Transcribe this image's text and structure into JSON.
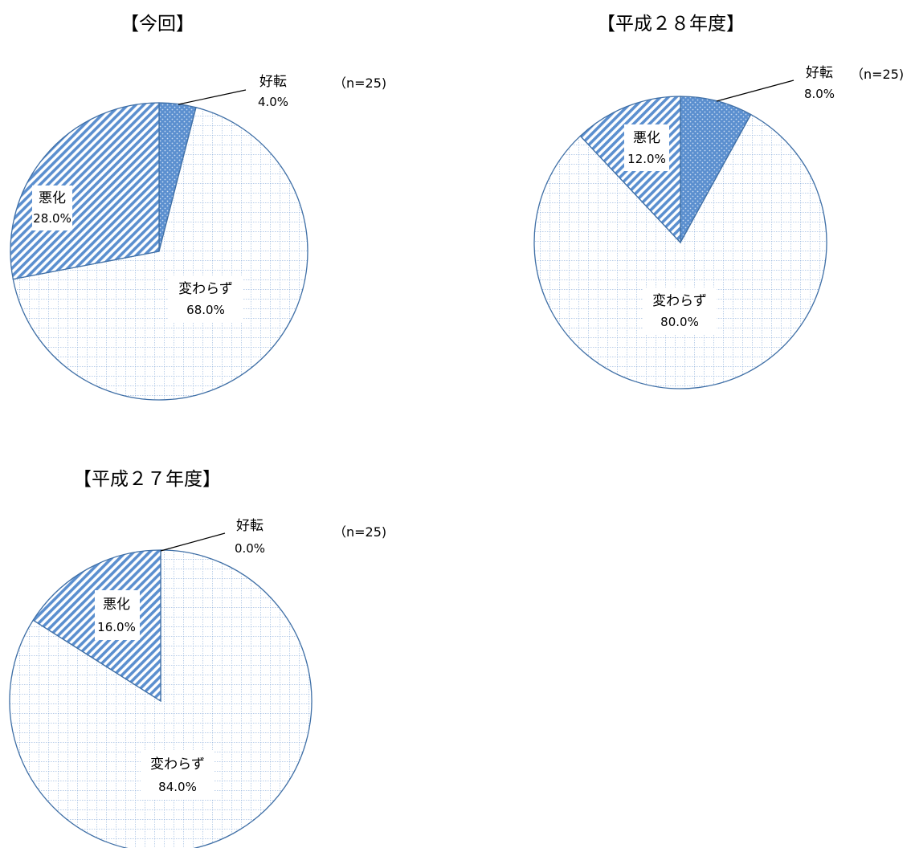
{
  "chart_data": [
    {
      "type": "pie",
      "title": "【今回】",
      "n_label": "（n=25)",
      "slices": [
        {
          "label": "好転",
          "value": 4.0,
          "value_text": "4.0%"
        },
        {
          "label": "変わらず",
          "value": 68.0,
          "value_text": "68.0%"
        },
        {
          "label": "悪化",
          "value": 28.0,
          "value_text": "28.0%"
        }
      ]
    },
    {
      "type": "pie",
      "title": "【平成２８年度】",
      "n_label": "（n=25)",
      "slices": [
        {
          "label": "好転",
          "value": 8.0,
          "value_text": "8.0%"
        },
        {
          "label": "変わらず",
          "value": 80.0,
          "value_text": "80.0%"
        },
        {
          "label": "悪化",
          "value": 12.0,
          "value_text": "12.0%"
        }
      ]
    },
    {
      "type": "pie",
      "title": "【平成２７年度】",
      "n_label": "（n=25)",
      "slices": [
        {
          "label": "好転",
          "value": 0.0,
          "value_text": "0.0%"
        },
        {
          "label": "変わらず",
          "value": 84.0,
          "value_text": "84.0%"
        },
        {
          "label": "悪化",
          "value": 16.0,
          "value_text": "16.0%"
        }
      ]
    }
  ],
  "colors": {
    "outline": "#3f6fa6",
    "improve_fill": "#5b8fcf",
    "improve_dot": "#c9dcf2",
    "unchanged_bg": "#ffffff",
    "unchanged_grid": "#8fb1dc",
    "worse_bg": "#ffffff",
    "worse_stripe": "#5b8fcf",
    "leader": "#000000"
  }
}
